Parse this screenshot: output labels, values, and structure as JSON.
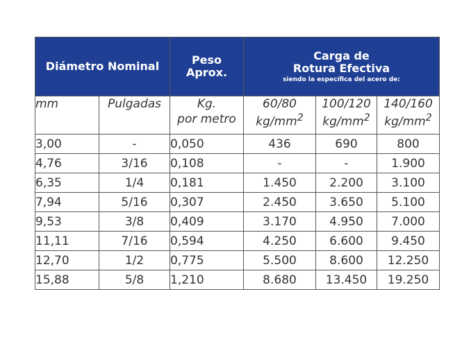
{
  "header": {
    "diametro": "Diámetro Nominal",
    "peso": [
      "Peso",
      "Aprox."
    ],
    "carga": [
      "Carga de",
      "Rotura Efectiva"
    ],
    "carga_sub": "siendo la específica del acero de:"
  },
  "units": {
    "mm": "mm",
    "pulgadas": "Pulgadas",
    "kg": "Kg.",
    "por_metro": "por metro",
    "steel": [
      {
        "grade": "60/80",
        "unit": "kg/mm",
        "sup": "2"
      },
      {
        "grade": "100/120",
        "unit": "kg/mm",
        "sup": "2"
      },
      {
        "grade": "140/160",
        "unit": "kg/mm",
        "sup": "2"
      }
    ]
  },
  "rows": [
    [
      "3,00",
      "-",
      "0,050",
      "436",
      "690",
      "800"
    ],
    [
      "4,76",
      "3/16",
      "0,108",
      "-",
      "-",
      "1.900"
    ],
    [
      "6,35",
      "1/4",
      "0,181",
      "1.450",
      "2.200",
      "3.100"
    ],
    [
      "7,94",
      "5/16",
      "0,307",
      "2.450",
      "3.650",
      "5.100"
    ],
    [
      "9,53",
      "3/8",
      "0,409",
      "3.170",
      "4.950",
      "7.000"
    ],
    [
      "11,11",
      "7/16",
      "0,594",
      "4.250",
      "6.600",
      "9.450"
    ],
    [
      "12,70",
      "1/2",
      "0,775",
      "5.500",
      "8.600",
      "12.250"
    ],
    [
      "15,88",
      "5/8",
      "1,210",
      "8.680",
      "13.450",
      "19.250"
    ]
  ],
  "colors": {
    "header_bg": "#1f3f94",
    "header_text": "#ffffff",
    "border": "#555555"
  }
}
